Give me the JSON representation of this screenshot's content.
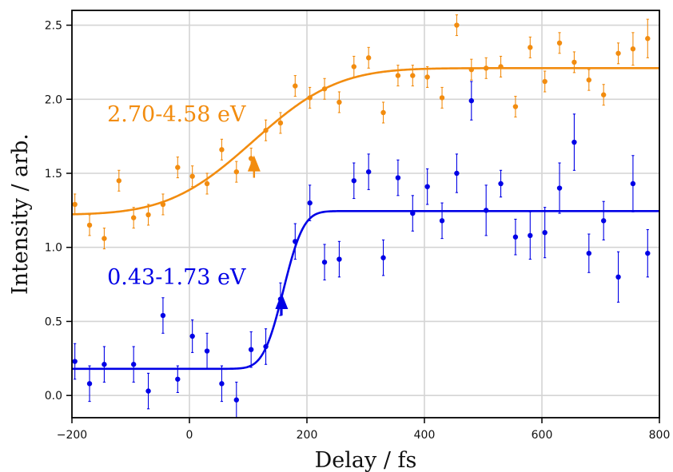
{
  "chart_data": {
    "type": "scatter",
    "title": "",
    "xlabel": "Delay / fs",
    "ylabel": "Intensity / arb.",
    "xlim": [
      -200,
      800
    ],
    "ylim": [
      -0.15,
      2.6
    ],
    "grid": true,
    "legend": "none",
    "x_ticks": [
      -200,
      0,
      200,
      400,
      600,
      800
    ],
    "x_tick_labels": [
      "−200",
      "0",
      "200",
      "400",
      "600",
      "800"
    ],
    "y_ticks": [
      0.0,
      0.5,
      1.0,
      1.5,
      2.0,
      2.5
    ],
    "y_tick_labels": [
      "0.0",
      "0.5",
      "1.0",
      "1.5",
      "2.0",
      "2.5"
    ],
    "series": [
      {
        "label": "2.70-4.58 eV",
        "color": "#f28c0f",
        "fit": {
          "baseline": 1.22,
          "amplitude": 0.99,
          "t0": 108,
          "width": 160
        },
        "arrow_at": {
          "x": 110,
          "y": 1.47
        },
        "label_position": {
          "x": -140,
          "y": 1.9
        },
        "points": [
          {
            "x": -195,
            "y": 1.29,
            "err": 0.07
          },
          {
            "x": -170,
            "y": 1.15,
            "err": 0.07
          },
          {
            "x": -145,
            "y": 1.06,
            "err": 0.07
          },
          {
            "x": -120,
            "y": 1.45,
            "err": 0.07
          },
          {
            "x": -95,
            "y": 1.2,
            "err": 0.07
          },
          {
            "x": -70,
            "y": 1.22,
            "err": 0.07
          },
          {
            "x": -45,
            "y": 1.29,
            "err": 0.07
          },
          {
            "x": -20,
            "y": 1.54,
            "err": 0.07
          },
          {
            "x": 5,
            "y": 1.48,
            "err": 0.07
          },
          {
            "x": 30,
            "y": 1.43,
            "err": 0.07
          },
          {
            "x": 55,
            "y": 1.66,
            "err": 0.07
          },
          {
            "x": 80,
            "y": 1.51,
            "err": 0.07
          },
          {
            "x": 105,
            "y": 1.6,
            "err": 0.07
          },
          {
            "x": 130,
            "y": 1.79,
            "err": 0.07
          },
          {
            "x": 155,
            "y": 1.84,
            "err": 0.07
          },
          {
            "x": 180,
            "y": 2.09,
            "err": 0.07
          },
          {
            "x": 205,
            "y": 2.01,
            "err": 0.07
          },
          {
            "x": 230,
            "y": 2.07,
            "err": 0.07
          },
          {
            "x": 255,
            "y": 1.98,
            "err": 0.07
          },
          {
            "x": 280,
            "y": 2.22,
            "err": 0.07
          },
          {
            "x": 305,
            "y": 2.28,
            "err": 0.07
          },
          {
            "x": 330,
            "y": 1.91,
            "err": 0.07
          },
          {
            "x": 355,
            "y": 2.16,
            "err": 0.07
          },
          {
            "x": 380,
            "y": 2.16,
            "err": 0.07
          },
          {
            "x": 405,
            "y": 2.15,
            "err": 0.07
          },
          {
            "x": 430,
            "y": 2.01,
            "err": 0.07
          },
          {
            "x": 455,
            "y": 2.5,
            "err": 0.07
          },
          {
            "x": 480,
            "y": 2.2,
            "err": 0.07
          },
          {
            "x": 505,
            "y": 2.21,
            "err": 0.07
          },
          {
            "x": 530,
            "y": 2.22,
            "err": 0.07
          },
          {
            "x": 555,
            "y": 1.95,
            "err": 0.07
          },
          {
            "x": 580,
            "y": 2.35,
            "err": 0.07
          },
          {
            "x": 605,
            "y": 2.12,
            "err": 0.07
          },
          {
            "x": 630,
            "y": 2.38,
            "err": 0.07
          },
          {
            "x": 655,
            "y": 2.25,
            "err": 0.07
          },
          {
            "x": 680,
            "y": 2.13,
            "err": 0.07
          },
          {
            "x": 705,
            "y": 2.03,
            "err": 0.07
          },
          {
            "x": 730,
            "y": 2.31,
            "err": 0.07
          },
          {
            "x": 755,
            "y": 2.34,
            "err": 0.11
          },
          {
            "x": 780,
            "y": 2.41,
            "err": 0.13
          }
        ]
      },
      {
        "label": "0.43-1.73 eV",
        "color": "#0000e6",
        "fit": {
          "baseline": 0.18,
          "amplitude": 1.065,
          "t0": 160,
          "width": 38
        },
        "arrow_at": {
          "x": 157,
          "y": 0.54
        },
        "label_position": {
          "x": -140,
          "y": 0.8
        },
        "points": [
          {
            "x": -195,
            "y": 0.23,
            "err": 0.12
          },
          {
            "x": -170,
            "y": 0.08,
            "err": 0.12
          },
          {
            "x": -145,
            "y": 0.21,
            "err": 0.12
          },
          {
            "x": -95,
            "y": 0.21,
            "err": 0.12
          },
          {
            "x": -70,
            "y": 0.03,
            "err": 0.12
          },
          {
            "x": -45,
            "y": 0.54,
            "err": 0.12
          },
          {
            "x": -20,
            "y": 0.11,
            "err": 0.09
          },
          {
            "x": 5,
            "y": 0.4,
            "err": 0.11
          },
          {
            "x": 30,
            "y": 0.3,
            "err": 0.12
          },
          {
            "x": 55,
            "y": 0.08,
            "err": 0.12
          },
          {
            "x": 80,
            "y": -0.03,
            "err": 0.12
          },
          {
            "x": 105,
            "y": 0.31,
            "err": 0.12
          },
          {
            "x": 130,
            "y": 0.33,
            "err": 0.12
          },
          {
            "x": 155,
            "y": 0.65,
            "err": 0.11
          },
          {
            "x": 180,
            "y": 1.04,
            "err": 0.12
          },
          {
            "x": 205,
            "y": 1.3,
            "err": 0.12
          },
          {
            "x": 230,
            "y": 0.9,
            "err": 0.12
          },
          {
            "x": 255,
            "y": 0.92,
            "err": 0.12
          },
          {
            "x": 280,
            "y": 1.45,
            "err": 0.12
          },
          {
            "x": 305,
            "y": 1.51,
            "err": 0.12
          },
          {
            "x": 330,
            "y": 0.93,
            "err": 0.12
          },
          {
            "x": 355,
            "y": 1.47,
            "err": 0.12
          },
          {
            "x": 380,
            "y": 1.23,
            "err": 0.12
          },
          {
            "x": 405,
            "y": 1.41,
            "err": 0.12
          },
          {
            "x": 430,
            "y": 1.18,
            "err": 0.12
          },
          {
            "x": 455,
            "y": 1.5,
            "err": 0.13
          },
          {
            "x": 480,
            "y": 1.99,
            "err": 0.13
          },
          {
            "x": 505,
            "y": 1.25,
            "err": 0.17
          },
          {
            "x": 530,
            "y": 1.43,
            "err": 0.09
          },
          {
            "x": 555,
            "y": 1.07,
            "err": 0.12
          },
          {
            "x": 580,
            "y": 1.08,
            "err": 0.16
          },
          {
            "x": 605,
            "y": 1.1,
            "err": 0.17
          },
          {
            "x": 630,
            "y": 1.4,
            "err": 0.17
          },
          {
            "x": 655,
            "y": 1.71,
            "err": 0.19
          },
          {
            "x": 680,
            "y": 0.96,
            "err": 0.13
          },
          {
            "x": 705,
            "y": 1.18,
            "err": 0.13
          },
          {
            "x": 730,
            "y": 0.8,
            "err": 0.17
          },
          {
            "x": 755,
            "y": 1.43,
            "err": 0.19
          },
          {
            "x": 780,
            "y": 0.96,
            "err": 0.16
          }
        ]
      }
    ]
  }
}
